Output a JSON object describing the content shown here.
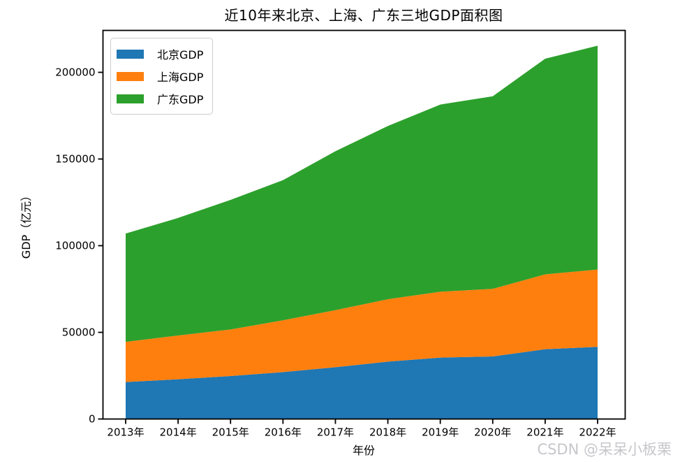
{
  "chart_data": {
    "type": "area",
    "stacked": true,
    "title": "近10年来北京、上海、广东三地GDP面积图",
    "xlabel": "年份",
    "ylabel": "GDP（亿元）",
    "categories": [
      "2013年",
      "2014年",
      "2015年",
      "2016年",
      "2017年",
      "2018年",
      "2019年",
      "2020年",
      "2021年",
      "2022年"
    ],
    "series": [
      {
        "name": "北京GDP",
        "color": "#1f77b4",
        "values": [
          21330.8,
          22926.0,
          24779.1,
          27041.2,
          29883.0,
          33106.0,
          35445.1,
          36102.6,
          40269.6,
          41610.9
        ]
      },
      {
        "name": "上海GDP",
        "color": "#ff7f0e",
        "values": [
          23204.1,
          25269.8,
          26887.0,
          29887.0,
          32925.0,
          36011.8,
          37987.6,
          38963.3,
          43214.8,
          44652.8
        ]
      },
      {
        "name": "广东GDP",
        "color": "#2ca02c",
        "values": [
          62475.0,
          67809.9,
          74732.8,
          80854.9,
          91648.7,
          99945.2,
          107986.9,
          111151.6,
          124369.7,
          129118.6
        ]
      }
    ],
    "stack_totals": [
      107009.9,
      116005.7,
      126398.9,
      137783.1,
      154456.7,
      169063.0,
      181419.6,
      186217.5,
      207854.1,
      215382.3
    ],
    "ylim": [
      0,
      224000
    ],
    "yticks": [
      0,
      50000,
      100000,
      150000,
      200000
    ],
    "ytick_labels": [
      "0",
      "50000",
      "100000",
      "150000",
      "200000"
    ],
    "legend_position": "upper-left",
    "grid": false
  },
  "watermark": {
    "text": "CSDN @呆呆小板栗",
    "color": "#c7c7cb"
  }
}
